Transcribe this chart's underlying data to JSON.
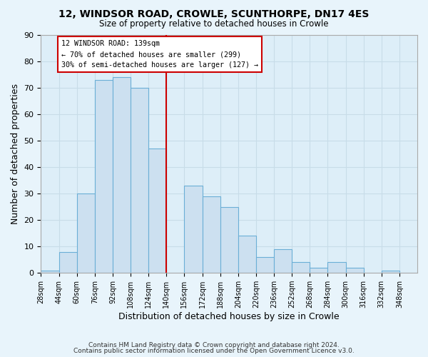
{
  "title": "12, WINDSOR ROAD, CROWLE, SCUNTHORPE, DN17 4ES",
  "subtitle": "Size of property relative to detached houses in Crowle",
  "xlabel": "Distribution of detached houses by size in Crowle",
  "ylabel": "Number of detached properties",
  "footer_line1": "Contains HM Land Registry data © Crown copyright and database right 2024.",
  "footer_line2": "Contains public sector information licensed under the Open Government Licence v3.0.",
  "bin_labels": [
    "28sqm",
    "44sqm",
    "60sqm",
    "76sqm",
    "92sqm",
    "108sqm",
    "124sqm",
    "140sqm",
    "156sqm",
    "172sqm",
    "188sqm",
    "204sqm",
    "220sqm",
    "236sqm",
    "252sqm",
    "268sqm",
    "284sqm",
    "300sqm",
    "316sqm",
    "332sqm",
    "348sqm"
  ],
  "bin_edges": [
    28,
    44,
    60,
    76,
    92,
    108,
    124,
    140,
    156,
    172,
    188,
    204,
    220,
    236,
    252,
    268,
    284,
    300,
    316,
    332,
    348,
    364
  ],
  "bar_values": [
    1,
    8,
    30,
    73,
    74,
    70,
    47,
    0,
    33,
    29,
    25,
    14,
    6,
    9,
    4,
    2,
    4,
    2,
    0,
    1,
    0
  ],
  "bar_color": "#cce0f0",
  "bar_edge_color": "#6bafd6",
  "reference_line_x": 140,
  "reference_line_color": "#cc0000",
  "annotation_title": "12 WINDSOR ROAD: 139sqm",
  "annotation_line2": "← 70% of detached houses are smaller (299)",
  "annotation_line3": "30% of semi-detached houses are larger (127) →",
  "annotation_box_edge_color": "#cc0000",
  "ylim": [
    0,
    90
  ],
  "yticks": [
    0,
    10,
    20,
    30,
    40,
    50,
    60,
    70,
    80,
    90
  ],
  "grid_color": "#c8dce8",
  "background_color": "#e8f4fb",
  "plot_background": "#ddeef8"
}
